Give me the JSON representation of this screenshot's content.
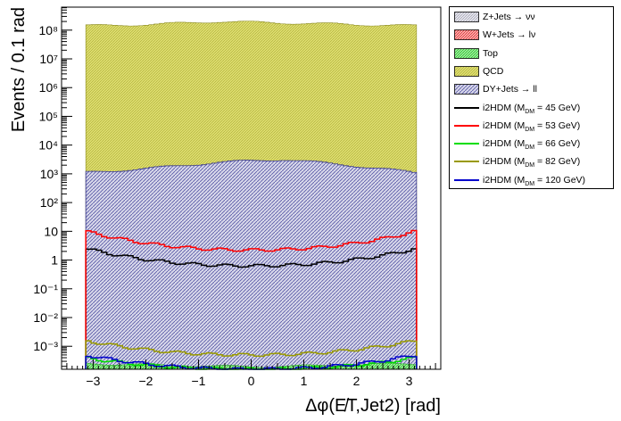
{
  "chart_data": {
    "type": "area",
    "ylabel": "Events / 0.1 rad",
    "xlabel": "Δφ(E̸T,Jet2) [rad]",
    "xlim": [
      -3.6,
      3.6
    ],
    "ylim_log10": [
      -3.8,
      8.8
    ],
    "log_y": true,
    "x_ticks": [
      "−3",
      "−2",
      "−1",
      "0",
      "1",
      "2",
      "3"
    ],
    "x_tick_values": [
      -3,
      -2,
      -1,
      0,
      1,
      2,
      3
    ],
    "y_ticks": [
      "10⁻³",
      "10⁻²",
      "10⁻¹",
      "1",
      "10",
      "10²",
      "10³",
      "10⁴",
      "10⁵",
      "10⁶",
      "10⁷",
      "10⁸"
    ],
    "y_tick_values": [
      -3,
      -2,
      -1,
      0,
      1,
      2,
      3,
      4,
      5,
      6,
      7,
      8
    ],
    "bins_x": [
      -3.14,
      3.14
    ],
    "stack_profiles_log10": {
      "QCD": [
        8.15,
        8.2,
        8.3,
        8.25,
        8.2,
        8.15
      ],
      "DY+Jets → ll": [
        3.05,
        3.2,
        3.4,
        3.5,
        3.3,
        3.05
      ],
      "Top": [
        -3.6,
        -3.65,
        -3.7,
        -3.7,
        -3.65,
        -3.6
      ]
    },
    "series": [
      {
        "name": "i2HDM (M_DM = 45 GeV)",
        "color": "#000000",
        "edge_log10": 0.4,
        "center_log10": -0.2
      },
      {
        "name": "i2HDM (M_DM = 53 GeV)",
        "color": "#ff0000",
        "edge_log10": 1.0,
        "center_log10": 0.35
      },
      {
        "name": "i2HDM (M_DM = 66 GeV)",
        "color": "#00dd00",
        "edge_log10": -3.4,
        "center_log10": -3.8
      },
      {
        "name": "i2HDM (M_DM = 82 GeV)",
        "color": "#999900",
        "edge_log10": -2.8,
        "center_log10": -3.3
      },
      {
        "name": "i2HDM (M_DM = 120 GeV)",
        "color": "#0000cc",
        "edge_log10": -3.3,
        "center_log10": -3.8
      }
    ],
    "legend": [
      {
        "label": "Z+Jets → νν",
        "kind": "fill",
        "color": "#c8c8d8"
      },
      {
        "label": "W+Jets → lν",
        "kind": "fill",
        "color": "#ff5050"
      },
      {
        "label": "Top",
        "kind": "fill",
        "color": "#6fe86f"
      },
      {
        "label": "QCD",
        "kind": "fill",
        "color": "#c8c850"
      },
      {
        "label": "DY+Jets → ll",
        "kind": "fill",
        "color": "#8c8cc8"
      },
      {
        "label": "i2HDM (M",
        "sub": "DM",
        "post": " =  45 GeV)",
        "kind": "line",
        "color": "#000000"
      },
      {
        "label": "i2HDM (M",
        "sub": "DM",
        "post": " =  53 GeV)",
        "kind": "line",
        "color": "#ff0000"
      },
      {
        "label": "i2HDM (M",
        "sub": "DM",
        "post": " =  66 GeV)",
        "kind": "line",
        "color": "#00dd00"
      },
      {
        "label": "i2HDM (M",
        "sub": "DM",
        "post": " =  82 GeV)",
        "kind": "line",
        "color": "#999900"
      },
      {
        "label": "i2HDM (M",
        "sub": "DM",
        "post": " = 120 GeV)",
        "kind": "line",
        "color": "#0000cc"
      }
    ]
  }
}
